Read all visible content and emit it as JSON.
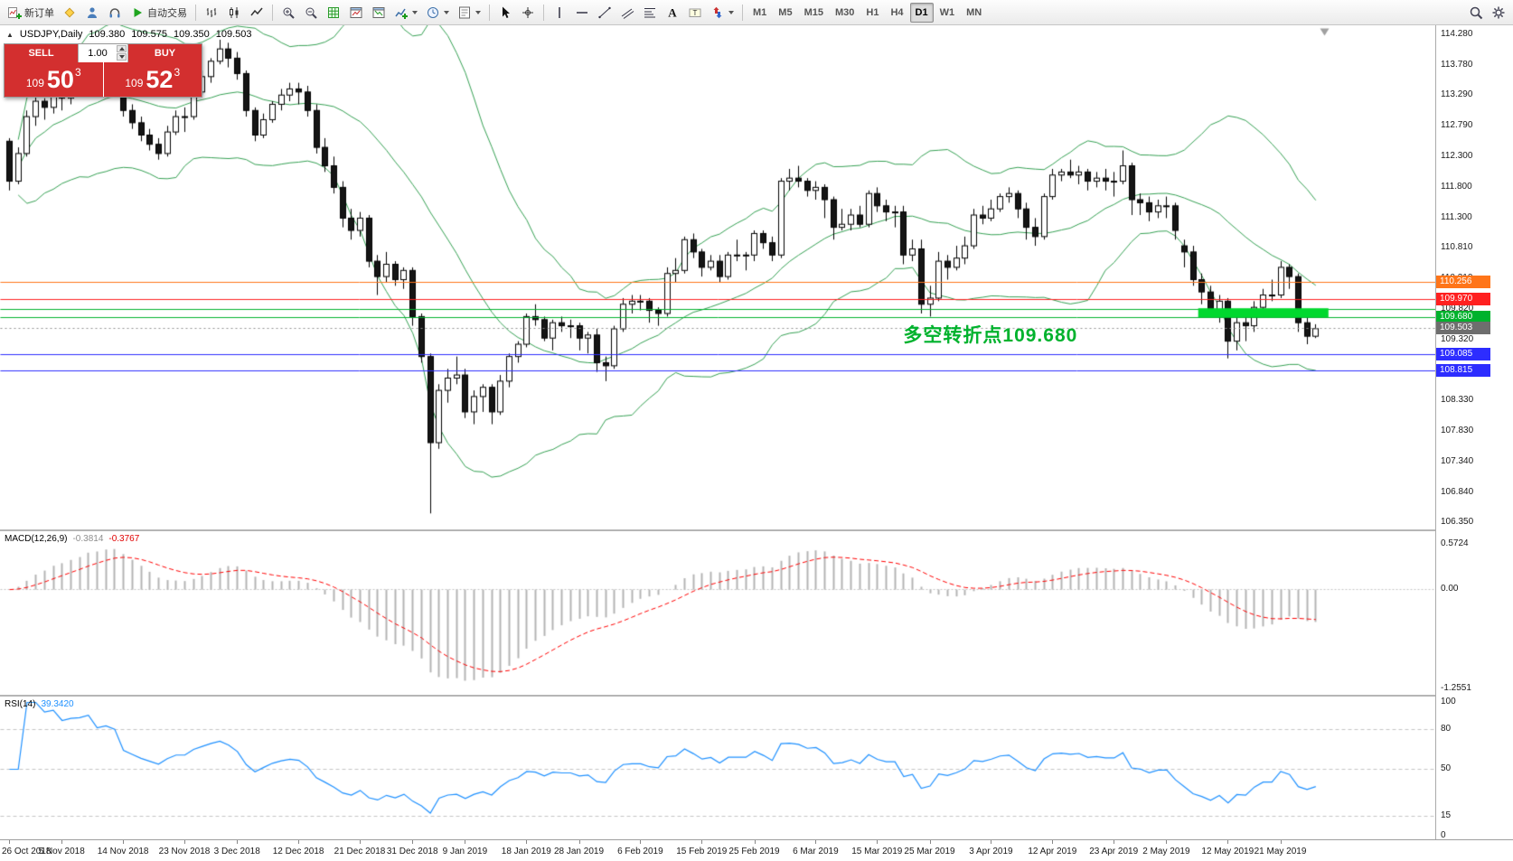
{
  "toolbar": {
    "items": [
      {
        "name": "new-order-button",
        "icon": "new-order-icon",
        "label": "新订单"
      },
      {
        "name": "mql5-community-button",
        "icon": "diamond-icon"
      },
      {
        "name": "user-profile-button",
        "icon": "person-icon"
      },
      {
        "name": "support-button",
        "icon": "headset-icon"
      },
      {
        "name": "autotrading-button",
        "icon": "play-icon",
        "label": "自动交易"
      },
      {
        "sep": true
      },
      {
        "name": "bar-chart-button",
        "icon": "bars-icon"
      },
      {
        "name": "candlestick-chart-button",
        "icon": "candles-icon"
      },
      {
        "name": "line-chart-button",
        "icon": "line-icon"
      },
      {
        "sep": true
      },
      {
        "name": "zoom-in-button",
        "icon": "zoom-in-icon"
      },
      {
        "name": "zoom-out-button",
        "icon": "zoom-out-icon"
      },
      {
        "name": "tile-windows-button",
        "icon": "grid-icon"
      },
      {
        "name": "cascade-windows-button",
        "icon": "chart-window-icon"
      },
      {
        "name": "arrange-windows-button",
        "icon": "chart-window2-icon"
      },
      {
        "name": "indicators-button",
        "icon": "indicators-icon",
        "caret": true
      },
      {
        "name": "periods-button",
        "icon": "clock-icon",
        "caret": true
      },
      {
        "name": "templates-button",
        "icon": "template-icon",
        "caret": true
      },
      {
        "sep": true
      },
      {
        "name": "cursor-button",
        "icon": "cursor-icon"
      },
      {
        "name": "crosshair-button",
        "icon": "crosshair-icon"
      },
      {
        "sep": true
      },
      {
        "name": "vertical-line-button",
        "icon": "vline-icon"
      },
      {
        "name": "horizontal-line-button",
        "icon": "hline-icon"
      },
      {
        "name": "trendline-button",
        "icon": "trendline-icon"
      },
      {
        "name": "channel-button",
        "icon": "channel-icon"
      },
      {
        "name": "fibonacci-button",
        "icon": "fibo-icon"
      },
      {
        "name": "text-button",
        "icon": "text-icon"
      },
      {
        "name": "text-label-button",
        "icon": "label-icon"
      },
      {
        "name": "arrows-button",
        "icon": "arrows-icon",
        "caret": true
      },
      {
        "sep": true
      }
    ],
    "timeframes": [
      "M1",
      "M5",
      "M15",
      "M30",
      "H1",
      "H4",
      "D1",
      "W1",
      "MN"
    ],
    "active_timeframe": "D1",
    "right_items": [
      {
        "name": "search-button",
        "icon": "search-icon"
      },
      {
        "name": "chart-settings-button",
        "icon": "settings-icon"
      }
    ]
  },
  "symbol_header": {
    "symbol": "USDJPY,Daily",
    "open": "109.380",
    "high": "109.575",
    "low": "109.350",
    "close": "109.503"
  },
  "trade_panel": {
    "sell_label": "SELL",
    "buy_label": "BUY",
    "volume": "1.00",
    "sell_price": {
      "prefix": "109",
      "big": "50",
      "sup": "3"
    },
    "buy_price": {
      "prefix": "109",
      "big": "52",
      "sup": "3"
    }
  },
  "chart_data": {
    "type": "candlestick",
    "symbol": "USDJPY",
    "timeframe": "Daily",
    "colors": {
      "bull_fill": "#ffffff",
      "bear_fill": "#151515",
      "outline": "#000000",
      "bollinger": "#35a053",
      "macd_histogram": "#b4b4b4",
      "macd_signal": "#ff0000",
      "rsi_line": "#1e90ff",
      "grid": "#c4c4c4"
    },
    "ohlc": [
      [
        112.55,
        112.6,
        111.75,
        111.9
      ],
      [
        111.9,
        112.45,
        111.85,
        112.35
      ],
      [
        112.35,
        113.05,
        112.3,
        112.95
      ],
      [
        112.95,
        113.3,
        112.8,
        113.2
      ],
      [
        113.2,
        113.25,
        112.9,
        113.1
      ],
      [
        113.1,
        113.45,
        113.0,
        113.4
      ],
      [
        113.4,
        113.5,
        113.05,
        113.25
      ],
      [
        113.25,
        113.55,
        113.15,
        113.5
      ],
      [
        113.5,
        113.7,
        113.35,
        113.6
      ],
      [
        113.6,
        114.1,
        113.55,
        114.0
      ],
      [
        114.0,
        114.05,
        113.6,
        113.7
      ],
      [
        113.7,
        114.0,
        113.65,
        113.95
      ],
      [
        113.95,
        114.05,
        113.75,
        113.85
      ],
      [
        113.85,
        113.9,
        112.95,
        113.05
      ],
      [
        113.05,
        113.15,
        112.75,
        112.85
      ],
      [
        112.85,
        112.95,
        112.55,
        112.65
      ],
      [
        112.65,
        112.75,
        112.4,
        112.5
      ],
      [
        112.5,
        112.6,
        112.25,
        112.35
      ],
      [
        112.35,
        112.8,
        112.3,
        112.7
      ],
      [
        112.7,
        113.05,
        112.65,
        112.95
      ],
      [
        112.95,
        113.1,
        112.7,
        112.95
      ],
      [
        112.95,
        113.4,
        112.9,
        113.35
      ],
      [
        113.35,
        113.7,
        113.3,
        113.6
      ],
      [
        113.6,
        113.9,
        113.5,
        113.85
      ],
      [
        113.85,
        114.2,
        113.8,
        114.05
      ],
      [
        114.05,
        114.15,
        113.75,
        113.9
      ],
      [
        113.9,
        114.0,
        113.55,
        113.65
      ],
      [
        113.65,
        113.7,
        112.95,
        113.05
      ],
      [
        113.05,
        113.1,
        112.55,
        112.65
      ],
      [
        112.65,
        113.0,
        112.6,
        112.9
      ],
      [
        112.9,
        113.2,
        112.85,
        113.15
      ],
      [
        113.15,
        113.4,
        113.05,
        113.3
      ],
      [
        113.3,
        113.5,
        113.2,
        113.4
      ],
      [
        113.4,
        113.5,
        113.15,
        113.35
      ],
      [
        113.35,
        113.45,
        112.95,
        113.05
      ],
      [
        113.05,
        113.15,
        112.35,
        112.45
      ],
      [
        112.45,
        112.6,
        112.05,
        112.15
      ],
      [
        112.15,
        112.3,
        111.7,
        111.8
      ],
      [
        111.8,
        111.9,
        111.15,
        111.3
      ],
      [
        111.3,
        111.45,
        110.95,
        111.1
      ],
      [
        111.1,
        111.4,
        111.0,
        111.3
      ],
      [
        111.3,
        111.35,
        110.5,
        110.6
      ],
      [
        110.6,
        110.7,
        110.05,
        110.35
      ],
      [
        110.35,
        110.75,
        110.25,
        110.55
      ],
      [
        110.55,
        110.6,
        110.2,
        110.3
      ],
      [
        110.3,
        110.5,
        110.15,
        110.45
      ],
      [
        110.45,
        110.5,
        109.55,
        109.7
      ],
      [
        109.7,
        109.75,
        108.95,
        109.05
      ],
      [
        109.05,
        109.1,
        106.5,
        107.65
      ],
      [
        107.65,
        108.6,
        107.55,
        108.5
      ],
      [
        108.5,
        108.85,
        108.3,
        108.7
      ],
      [
        108.7,
        109.05,
        108.6,
        108.75
      ],
      [
        108.75,
        108.85,
        108.05,
        108.15
      ],
      [
        108.15,
        108.5,
        107.95,
        108.4
      ],
      [
        108.4,
        108.6,
        108.15,
        108.55
      ],
      [
        108.55,
        108.6,
        107.95,
        108.15
      ],
      [
        108.15,
        108.75,
        108.1,
        108.65
      ],
      [
        108.65,
        109.1,
        108.55,
        109.05
      ],
      [
        109.05,
        109.3,
        108.95,
        109.25
      ],
      [
        109.25,
        109.75,
        109.2,
        109.7
      ],
      [
        109.7,
        109.9,
        109.55,
        109.65
      ],
      [
        109.65,
        109.7,
        109.3,
        109.35
      ],
      [
        109.35,
        109.65,
        109.15,
        109.6
      ],
      [
        109.6,
        109.7,
        109.45,
        109.55
      ],
      [
        109.55,
        109.65,
        109.35,
        109.55
      ],
      [
        109.55,
        109.6,
        109.15,
        109.35
      ],
      [
        109.35,
        109.45,
        109.1,
        109.4
      ],
      [
        109.4,
        109.5,
        108.8,
        108.95
      ],
      [
        108.95,
        109.05,
        108.65,
        108.9
      ],
      [
        108.9,
        109.55,
        108.85,
        109.5
      ],
      [
        109.5,
        110.0,
        109.45,
        109.9
      ],
      [
        109.9,
        110.05,
        109.75,
        109.95
      ],
      [
        109.95,
        110.05,
        109.8,
        109.95
      ],
      [
        109.95,
        110.0,
        109.6,
        109.8
      ],
      [
        109.8,
        109.85,
        109.55,
        109.75
      ],
      [
        109.75,
        110.5,
        109.7,
        110.4
      ],
      [
        110.4,
        110.65,
        110.25,
        110.45
      ],
      [
        110.45,
        111.0,
        110.4,
        110.95
      ],
      [
        110.95,
        111.05,
        110.65,
        110.75
      ],
      [
        110.75,
        110.8,
        110.35,
        110.5
      ],
      [
        110.5,
        110.7,
        110.45,
        110.6
      ],
      [
        110.6,
        110.7,
        110.25,
        110.35
      ],
      [
        110.35,
        110.75,
        110.3,
        110.7
      ],
      [
        110.7,
        110.95,
        110.6,
        110.7
      ],
      [
        110.7,
        110.75,
        110.45,
        110.7
      ],
      [
        110.7,
        111.1,
        110.6,
        111.05
      ],
      [
        111.05,
        111.1,
        110.8,
        110.9
      ],
      [
        110.9,
        111.0,
        110.6,
        110.7
      ],
      [
        110.7,
        111.95,
        110.65,
        111.9
      ],
      [
        111.9,
        112.1,
        111.75,
        111.95
      ],
      [
        111.95,
        112.15,
        111.8,
        111.9
      ],
      [
        111.9,
        111.95,
        111.65,
        111.75
      ],
      [
        111.75,
        111.9,
        111.6,
        111.8
      ],
      [
        111.8,
        111.85,
        111.3,
        111.6
      ],
      [
        111.6,
        111.65,
        110.95,
        111.15
      ],
      [
        111.15,
        111.45,
        111.1,
        111.2
      ],
      [
        111.2,
        111.45,
        111.1,
        111.35
      ],
      [
        111.35,
        111.5,
        111.15,
        111.2
      ],
      [
        111.2,
        111.75,
        111.15,
        111.7
      ],
      [
        111.7,
        111.8,
        111.4,
        111.5
      ],
      [
        111.5,
        111.6,
        111.25,
        111.4
      ],
      [
        111.4,
        111.5,
        111.15,
        111.4
      ],
      [
        111.4,
        111.5,
        110.55,
        110.7
      ],
      [
        110.7,
        110.95,
        110.6,
        110.8
      ],
      [
        110.8,
        110.95,
        109.75,
        109.9
      ],
      [
        109.9,
        110.2,
        109.7,
        110.0
      ],
      [
        110.0,
        110.75,
        109.95,
        110.6
      ],
      [
        110.6,
        110.7,
        110.3,
        110.5
      ],
      [
        110.5,
        110.85,
        110.45,
        110.65
      ],
      [
        110.65,
        111.0,
        110.55,
        110.85
      ],
      [
        110.85,
        111.45,
        110.8,
        111.35
      ],
      [
        111.35,
        111.5,
        111.2,
        111.3
      ],
      [
        111.3,
        111.6,
        111.25,
        111.45
      ],
      [
        111.45,
        111.7,
        111.4,
        111.65
      ],
      [
        111.65,
        111.8,
        111.55,
        111.7
      ],
      [
        111.7,
        111.75,
        111.3,
        111.45
      ],
      [
        111.45,
        111.55,
        110.95,
        111.15
      ],
      [
        111.15,
        111.3,
        110.85,
        111.0
      ],
      [
        111.0,
        111.7,
        110.95,
        111.65
      ],
      [
        111.65,
        112.1,
        111.6,
        112.0
      ],
      [
        112.0,
        112.1,
        111.9,
        112.05
      ],
      [
        112.05,
        112.25,
        111.95,
        112.0
      ],
      [
        112.0,
        112.15,
        111.85,
        112.05
      ],
      [
        112.05,
        112.1,
        111.75,
        111.9
      ],
      [
        111.9,
        112.05,
        111.8,
        111.95
      ],
      [
        111.95,
        112.1,
        111.75,
        111.9
      ],
      [
        111.9,
        112.05,
        111.65,
        111.9
      ],
      [
        111.9,
        112.4,
        111.85,
        112.15
      ],
      [
        112.15,
        112.2,
        111.35,
        111.6
      ],
      [
        111.6,
        111.7,
        111.35,
        111.55
      ],
      [
        111.55,
        111.65,
        111.25,
        111.4
      ],
      [
        111.4,
        111.6,
        111.3,
        111.5
      ],
      [
        111.5,
        111.65,
        111.3,
        111.5
      ],
      [
        111.5,
        111.55,
        110.95,
        111.1
      ],
      [
        110.85,
        110.95,
        110.5,
        110.75
      ],
      [
        110.75,
        110.85,
        110.2,
        110.3
      ],
      [
        110.3,
        110.4,
        109.9,
        110.1
      ],
      [
        110.1,
        110.2,
        109.7,
        109.8
      ],
      [
        109.8,
        110.05,
        109.6,
        109.95
      ],
      [
        109.95,
        110.0,
        109.02,
        109.3
      ],
      [
        109.3,
        109.7,
        109.15,
        109.6
      ],
      [
        109.6,
        109.7,
        109.3,
        109.55
      ],
      [
        109.55,
        109.95,
        109.45,
        109.85
      ],
      [
        109.85,
        110.15,
        109.75,
        110.05
      ],
      [
        110.05,
        110.3,
        109.95,
        110.05
      ],
      [
        110.05,
        110.6,
        110.0,
        110.5
      ],
      [
        110.5,
        110.55,
        110.15,
        110.35
      ],
      [
        110.35,
        110.4,
        109.45,
        109.6
      ],
      [
        109.6,
        109.7,
        109.25,
        109.38
      ],
      [
        109.38,
        109.575,
        109.35,
        109.503
      ]
    ],
    "bollinger": {
      "period": 20,
      "deviation": 2
    },
    "x_labels": [
      {
        "bar": 0,
        "text": "26 Oct 2018"
      },
      {
        "bar": 6,
        "text": "5 Nov 2018"
      },
      {
        "bar": 13,
        "text": "14 Nov 2018"
      },
      {
        "bar": 20,
        "text": "23 Nov 2018"
      },
      {
        "bar": 26,
        "text": "3 Dec 2018"
      },
      {
        "bar": 33,
        "text": "12 Dec 2018"
      },
      {
        "bar": 40,
        "text": "21 Dec 2018"
      },
      {
        "bar": 46,
        "text": "31 Dec 2018"
      },
      {
        "bar": 52,
        "text": "9 Jan 2019"
      },
      {
        "bar": 59,
        "text": "18 Jan 2019"
      },
      {
        "bar": 65,
        "text": "28 Jan 2019"
      },
      {
        "bar": 72,
        "text": "6 Feb 2019"
      },
      {
        "bar": 79,
        "text": "15 Feb 2019"
      },
      {
        "bar": 85,
        "text": "25 Feb 2019"
      },
      {
        "bar": 92,
        "text": "6 Mar 2019"
      },
      {
        "bar": 99,
        "text": "15 Mar 2019"
      },
      {
        "bar": 105,
        "text": "25 Mar 2019"
      },
      {
        "bar": 112,
        "text": "3 Apr 2019"
      },
      {
        "bar": 119,
        "text": "12 Apr 2019"
      },
      {
        "bar": 126,
        "text": "23 Apr 2019"
      },
      {
        "bar": 132,
        "text": "2 May 2019"
      },
      {
        "bar": 139,
        "text": "12 May 2019"
      },
      {
        "bar": 145,
        "text": "21 May 2019"
      }
    ],
    "price_axis": {
      "min": 106.35,
      "max": 114.28,
      "labels": [
        "114.280",
        "113.780",
        "113.290",
        "112.790",
        "112.300",
        "111.800",
        "111.300",
        "110.810",
        "110.310",
        "109.820",
        "109.320",
        "108.830",
        "108.330",
        "107.830",
        "107.340",
        "106.840",
        "106.350"
      ]
    },
    "hlines": [
      {
        "price": 110.256,
        "color": "#ff7519"
      },
      {
        "price": 109.97,
        "color": "#ff2020"
      },
      {
        "price": 109.82,
        "color": "#00b22d"
      },
      {
        "price": 109.68,
        "color": "#00b22d"
      },
      {
        "price": 109.085,
        "color": "#2d2dff"
      },
      {
        "price": 108.815,
        "color": "#2d2dff"
      }
    ],
    "bid_line": {
      "price": 109.503,
      "color": "#909090"
    },
    "green_box": {
      "bar_start": 136,
      "price_top": 109.835,
      "price_bottom": 109.69,
      "color": "#00d82e"
    },
    "badges": [
      {
        "text": "110.256",
        "price": 110.256,
        "color": "#ff7519"
      },
      {
        "text": "109.970",
        "price": 109.97,
        "color": "#ff2020"
      },
      {
        "text": "109.680",
        "price": 109.68,
        "color": "#00b22d"
      },
      {
        "text": "109.503",
        "price": 109.503,
        "color": "#6e6e6e"
      },
      {
        "text": "109.085",
        "price": 109.085,
        "color": "#2d2dff"
      },
      {
        "text": "108.815",
        "price": 108.815,
        "color": "#2d2dff"
      }
    ],
    "annotation": {
      "text": "多空转折点109.680",
      "color": "#00b22d",
      "bar": 102,
      "price": 109.62
    },
    "macd": {
      "title": "MACD(12,26,9)",
      "value_main": "-0.3814",
      "value_signal": "-0.3767",
      "max": 0.5724,
      "min": -1.2551,
      "axis_labels": [
        "0.5724",
        "0.00",
        "-1.2551"
      ],
      "axis_values": [
        0.5724,
        0,
        -1.2551
      ]
    },
    "rsi": {
      "title": "RSI(14)",
      "value": "39.3420",
      "axis_labels": [
        "100",
        "80",
        "50",
        "15",
        "0"
      ],
      "axis_values": [
        100,
        80,
        50,
        15,
        0
      ],
      "levels": [
        80,
        50,
        15
      ]
    }
  }
}
